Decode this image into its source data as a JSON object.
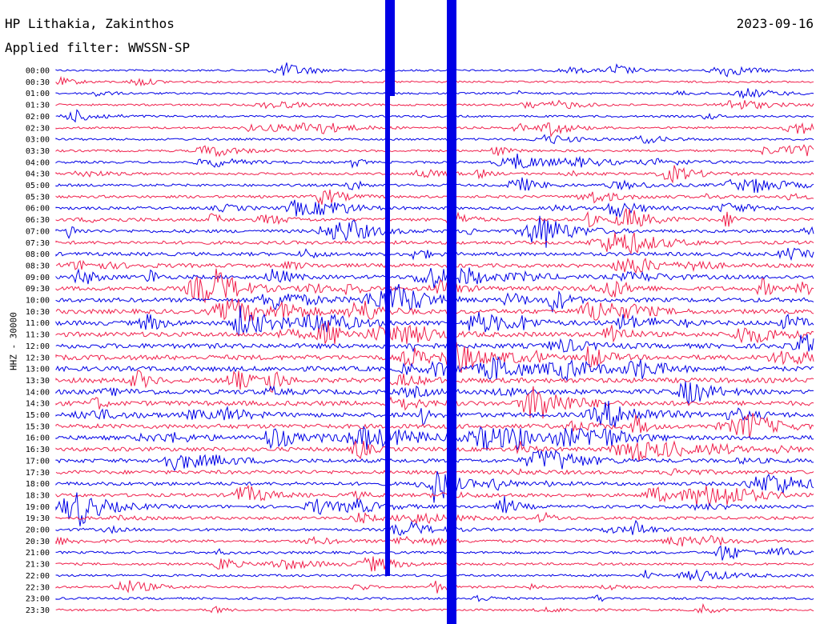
{
  "header": {
    "station": "HP Lithakia, Zakinthos",
    "date": "2023-09-16",
    "filter": "Applied filter: WWSSN-SP"
  },
  "axis": {
    "ylabel": "HHZ - 30000"
  },
  "colors": {
    "trace_a": "#0000e6",
    "trace_b": "#f0204c",
    "background": "#ffffff",
    "text": "#000000"
  },
  "chart_data": {
    "type": "line",
    "title": "HP Lithakia, Zakinthos",
    "subtitle": "Applied filter: WWSSN-SP",
    "ylabel": "HHZ - 30000",
    "xlabel": "",
    "row_labels": [
      "00:00",
      "00:30",
      "01:00",
      "01:30",
      "02:00",
      "02:30",
      "03:00",
      "03:30",
      "04:00",
      "04:30",
      "05:00",
      "05:30",
      "06:00",
      "06:30",
      "07:00",
      "07:30",
      "08:00",
      "08:30",
      "09:00",
      "09:30",
      "10:00",
      "10:30",
      "11:00",
      "11:30",
      "12:00",
      "12:30",
      "13:00",
      "13:30",
      "14:00",
      "14:30",
      "15:00",
      "15:30",
      "16:00",
      "16:30",
      "17:00",
      "17:30",
      "18:00",
      "18:30",
      "19:00",
      "19:30",
      "20:00",
      "20:30",
      "21:00",
      "21:30",
      "22:00",
      "22:30",
      "23:00",
      "23:30"
    ],
    "series": [
      {
        "color": "#0000e6"
      },
      {
        "color": "#f0204c"
      }
    ],
    "grid": false,
    "legend": "none"
  }
}
